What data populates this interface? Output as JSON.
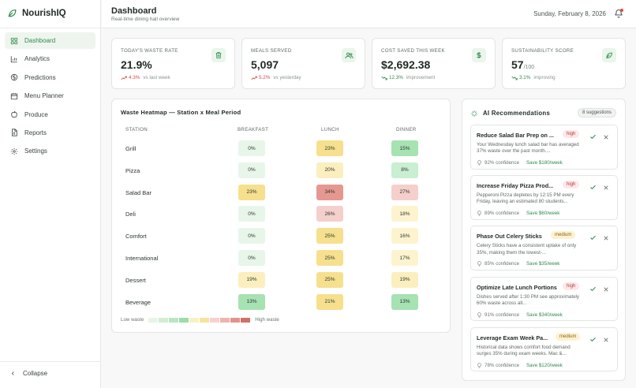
{
  "brand": {
    "name": "NourishIQ",
    "icon": "leaf-icon"
  },
  "sidebar": {
    "items": [
      {
        "label": "Dashboard",
        "icon": "grid-icon",
        "active": true
      },
      {
        "label": "Analytics",
        "icon": "bar-chart-icon",
        "active": false
      },
      {
        "label": "Predictions",
        "icon": "brain-icon",
        "active": false
      },
      {
        "label": "Menu Planner",
        "icon": "calendar-icon",
        "active": false
      },
      {
        "label": "Produce",
        "icon": "apple-icon",
        "active": false
      },
      {
        "label": "Reports",
        "icon": "document-icon",
        "active": false
      },
      {
        "label": "Settings",
        "icon": "gear-icon",
        "active": false
      }
    ],
    "collapse_label": "Collapse"
  },
  "header": {
    "title": "Dashboard",
    "subtitle": "Real-time dining hall overview",
    "date": "Sunday, February 8, 2026"
  },
  "kpis": [
    {
      "label": "Today's Waste Rate",
      "value": "21.9%",
      "suffix": "",
      "delta": "4.3%",
      "delta_note": "vs last week",
      "trend": "up",
      "trend_color": "#d94848",
      "icon": "trash-icon"
    },
    {
      "label": "Meals Served",
      "value": "5,097",
      "suffix": "",
      "delta": "5.2%",
      "delta_note": "vs yesterday",
      "trend": "up",
      "trend_color": "#d94848",
      "icon": "users-icon"
    },
    {
      "label": "Cost Saved This Week",
      "value": "$2,692.38",
      "suffix": "",
      "delta": "12.3%",
      "delta_note": "improvement",
      "trend": "down",
      "trend_color": "#2f8a4c",
      "icon": "dollar-icon"
    },
    {
      "label": "Sustainability Score",
      "value": "57",
      "suffix": "/100",
      "delta": "3.1%",
      "delta_note": "improving",
      "trend": "down",
      "trend_color": "#2f8a4c",
      "icon": "leaf-icon"
    }
  ],
  "heatmap": {
    "title": "Waste Heatmap — Station x Meal Period",
    "columns": [
      "Station",
      "Breakfast",
      "Lunch",
      "Dinner"
    ],
    "rows": [
      {
        "station": "Grill",
        "values": [
          "0%",
          "23%",
          "15%"
        ]
      },
      {
        "station": "Pizza",
        "values": [
          "0%",
          "20%",
          "8%"
        ]
      },
      {
        "station": "Salad Bar",
        "values": [
          "23%",
          "34%",
          "27%"
        ]
      },
      {
        "station": "Deli",
        "values": [
          "0%",
          "26%",
          "18%"
        ]
      },
      {
        "station": "Comfort",
        "values": [
          "0%",
          "25%",
          "16%"
        ]
      },
      {
        "station": "International",
        "values": [
          "0%",
          "25%",
          "17%"
        ]
      },
      {
        "station": "Dessert",
        "values": [
          "19%",
          "25%",
          "19%"
        ]
      },
      {
        "station": "Beverage",
        "values": [
          "13%",
          "21%",
          "13%"
        ]
      }
    ],
    "legend_low": "Low waste",
    "legend_high": "High waste",
    "legend_colors": [
      "#e6f5e8",
      "#cfeed5",
      "#b8e6c1",
      "#9ddcab",
      "#fbf0c4",
      "#f7e39a",
      "#f6d2cf",
      "#eeb4ae",
      "#e3938b",
      "#d46f66"
    ]
  },
  "ai": {
    "title": "AI Recommendations",
    "count_label": "8 suggestions",
    "items": [
      {
        "title": "Reduce Salad Bar Prep on ...",
        "priority": "high",
        "desc": "Your Wednesday lunch salad bar has averaged 37% waste over the past month....",
        "confidence": "92% confidence",
        "save": "Save $180/week"
      },
      {
        "title": "Increase Friday Pizza Prod...",
        "priority": "high",
        "desc": "Pepperoni Pizza depletes by 12:15 PM every Friday, leaving an estimated 80 students...",
        "confidence": "89% confidence",
        "save": "Save $60/week"
      },
      {
        "title": "Phase Out Celery Sticks",
        "priority": "medium",
        "desc": "Celery Sticks have a consistent uptake of only 35%, making them the lowest-...",
        "confidence": "85% confidence",
        "save": "Save $35/week"
      },
      {
        "title": "Optimize Late Lunch Portions",
        "priority": "high",
        "desc": "Dishes served after 1:30 PM see approximately 60% waste across all...",
        "confidence": "91% confidence",
        "save": "Save $340/week"
      },
      {
        "title": "Leverage Exam Week Pa...",
        "priority": "medium",
        "desc": "Historical data shows comfort food demand surges 35% during exam weeks. Mac &...",
        "confidence": "78% confidence",
        "save": "Save $120/week"
      }
    ]
  }
}
